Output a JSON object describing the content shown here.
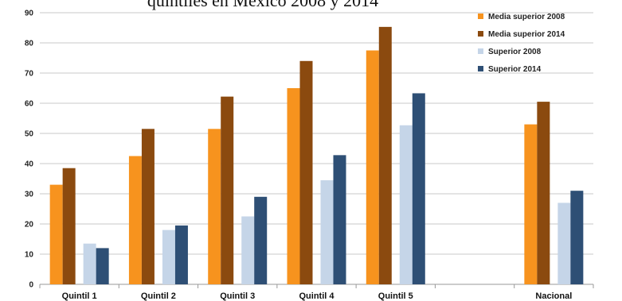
{
  "chart_data": {
    "type": "bar",
    "title": "quintiles en México 2008 y 2014",
    "xlabel": "",
    "ylabel": "",
    "ylim": [
      0,
      90
    ],
    "yticks": [
      0,
      10,
      20,
      30,
      40,
      50,
      60,
      70,
      80,
      90
    ],
    "grid": true,
    "legend_position": "top-right",
    "categories": [
      "Quintil 1",
      "Quintil 2",
      "Quintil 3",
      "Quintil 4",
      "Quintil 5",
      "",
      "Nacional"
    ],
    "series": [
      {
        "name": "Media superior 2008",
        "color": "#F7931E",
        "values": [
          33,
          42.5,
          51.5,
          65,
          77.5,
          null,
          53
        ]
      },
      {
        "name": "Media superior 2014",
        "color": "#8B4A0F",
        "values": [
          38.5,
          51.5,
          62.2,
          74,
          85.3,
          null,
          60.5
        ]
      },
      {
        "name": "Superior 2008",
        "color": "#C5D5E8",
        "values": [
          13.5,
          18,
          22.5,
          34.5,
          52.7,
          null,
          27
        ]
      },
      {
        "name": "Superior 2014",
        "color": "#2E4F75",
        "values": [
          12,
          19.5,
          29,
          42.8,
          63.3,
          null,
          31
        ]
      }
    ]
  }
}
